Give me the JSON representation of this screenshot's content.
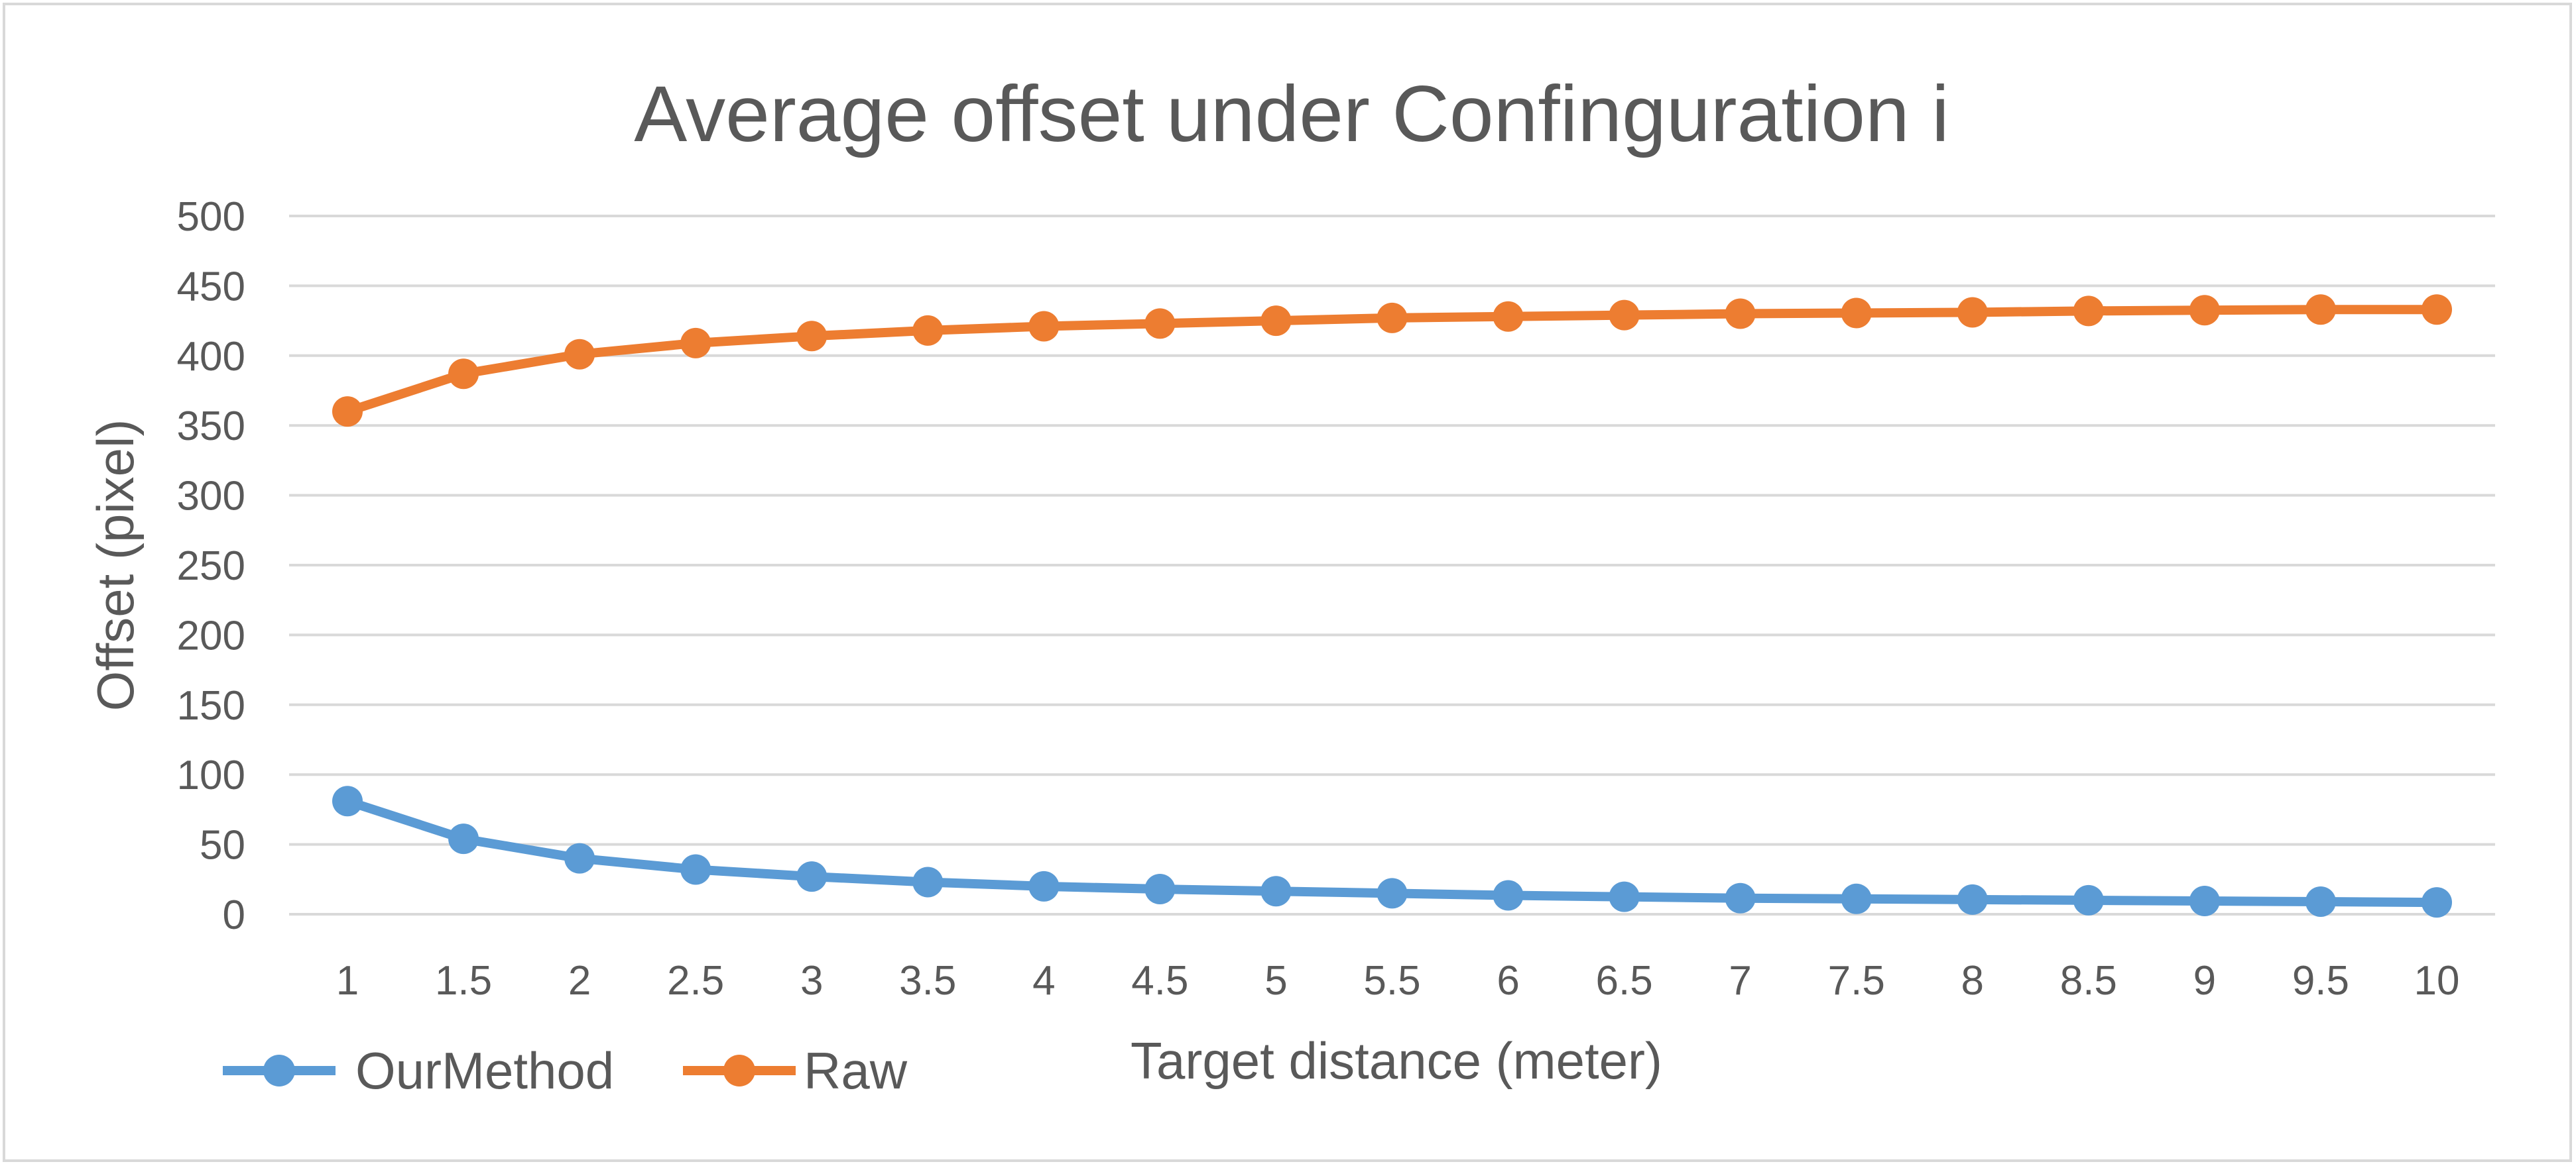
{
  "chart_data": {
    "type": "line",
    "title": "Average offset under Confinguration i",
    "xlabel": "Target distance (meter)",
    "ylabel": "Offset (pixel)",
    "categories": [
      "1",
      "1.5",
      "2",
      "2.5",
      "3",
      "3.5",
      "4",
      "4.5",
      "5",
      "5.5",
      "6",
      "6.5",
      "7",
      "7.5",
      "8",
      "8.5",
      "9",
      "9.5",
      "10"
    ],
    "ylim": [
      0,
      500
    ],
    "yticks": [
      "0",
      "50",
      "100",
      "150",
      "200",
      "250",
      "300",
      "350",
      "400",
      "450",
      "500"
    ],
    "grid": true,
    "legend_position": "bottom-left",
    "series": [
      {
        "name": "OurMethod",
        "color": "#5b9bd5",
        "values": [
          81,
          54,
          40,
          32,
          27,
          23,
          20,
          18,
          16.5,
          15,
          13.5,
          12.5,
          11.5,
          11,
          10.5,
          10,
          9.5,
          9,
          8.5
        ]
      },
      {
        "name": "Raw",
        "color": "#ed7d31",
        "values": [
          360,
          387,
          401,
          409,
          414,
          418,
          421,
          423,
          425,
          427,
          428,
          429,
          430,
          430.5,
          431,
          432,
          432.5,
          433,
          433
        ]
      }
    ]
  }
}
